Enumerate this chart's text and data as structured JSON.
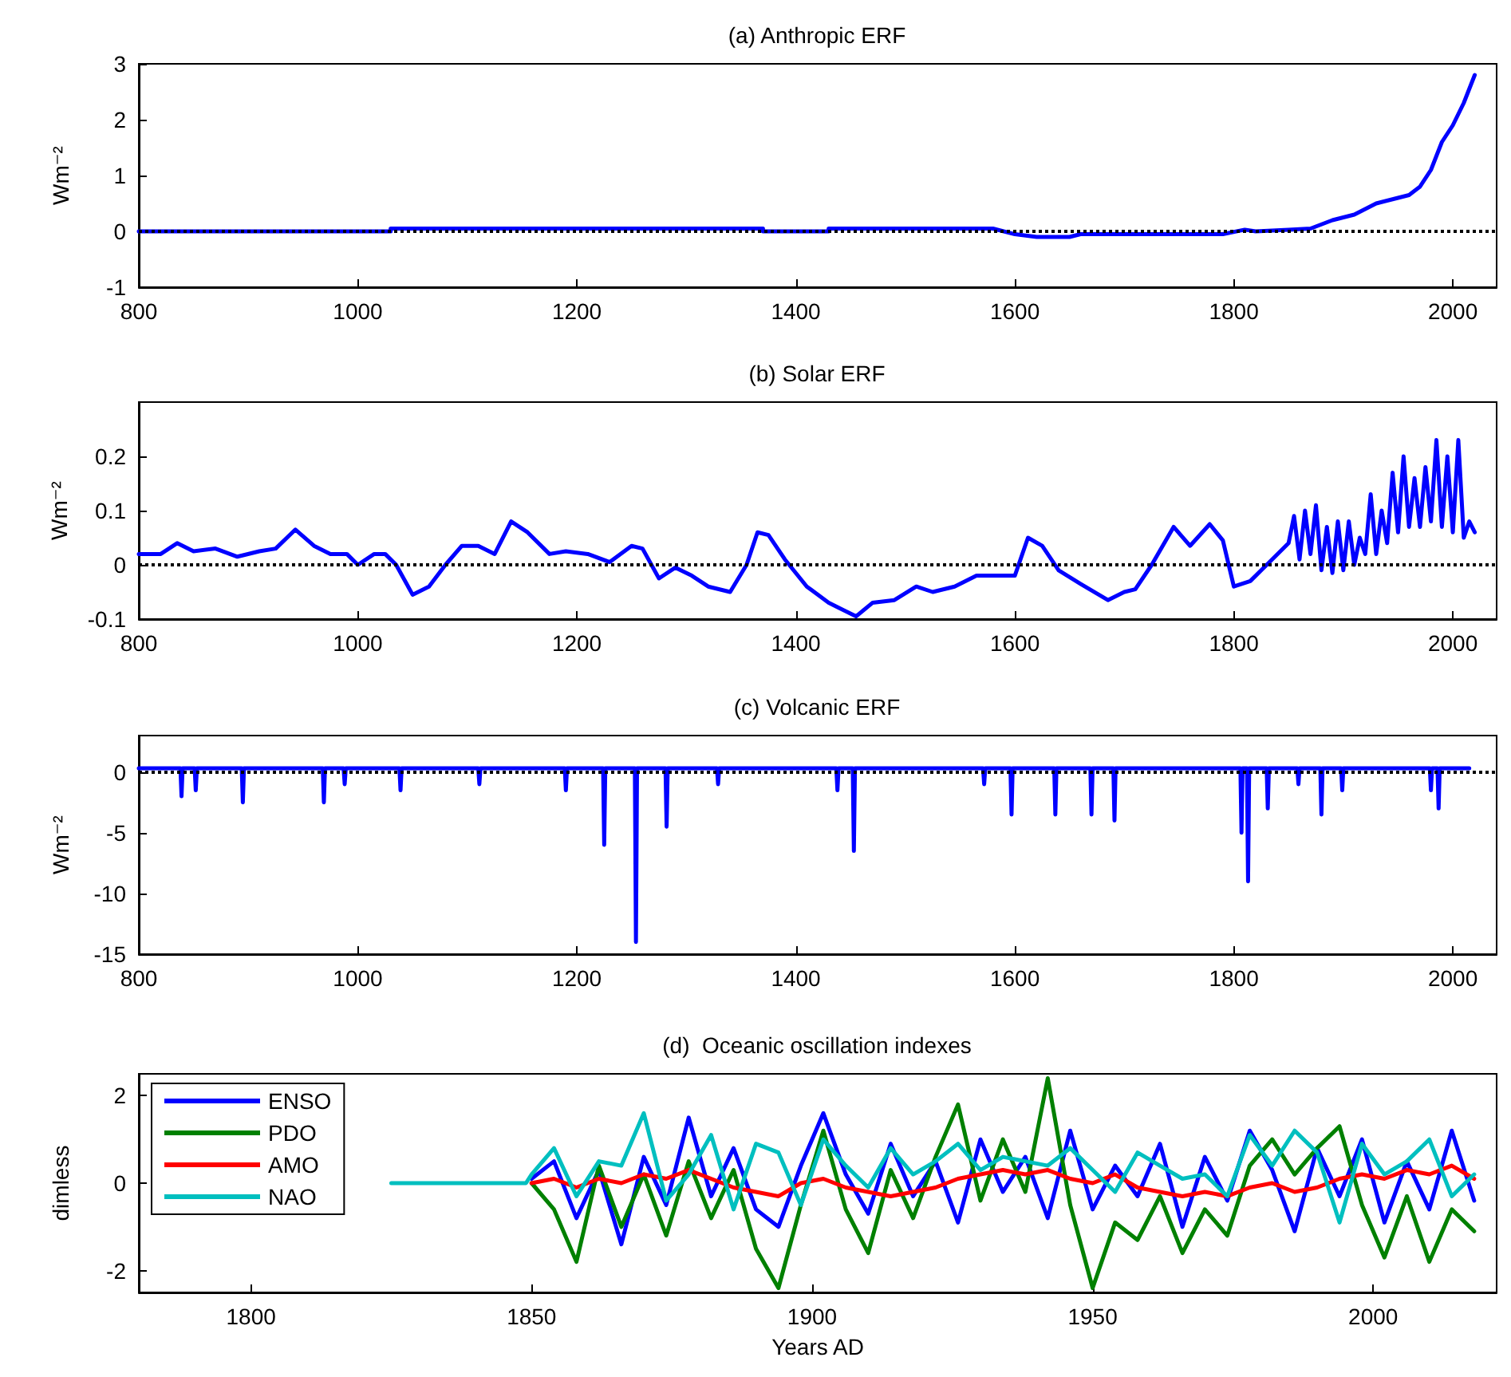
{
  "chart_data": [
    {
      "type": "line",
      "title": "(a) Anthropic ERF",
      "ylabel": "Wm⁻²",
      "color": "#0000ff",
      "marker": "none",
      "grid": false,
      "xlim": [
        800,
        2040
      ],
      "xticks": [
        800,
        1000,
        1200,
        1400,
        1600,
        1800,
        2000
      ],
      "ylim": [
        -1,
        3
      ],
      "yticks": [
        -1,
        0,
        1,
        2,
        3
      ],
      "x": [
        800,
        1030,
        1030,
        1370,
        1370,
        1430,
        1430,
        1580,
        1600,
        1620,
        1650,
        1660,
        1790,
        1810,
        1820,
        1850,
        1870,
        1890,
        1910,
        1930,
        1950,
        1960,
        1970,
        1980,
        1990,
        2000,
        2010,
        2020
      ],
      "values": [
        0,
        0,
        0.05,
        0.05,
        0,
        0,
        0.05,
        0.05,
        -0.05,
        -0.1,
        -0.1,
        -0.05,
        -0.05,
        0.03,
        0,
        0.03,
        0.05,
        0.2,
        0.3,
        0.5,
        0.6,
        0.65,
        0.8,
        1.1,
        1.6,
        1.9,
        2.3,
        2.8
      ],
      "ref_lines": [
        {
          "axis": "y",
          "value": 0,
          "color": "#000000",
          "line_style": "dotted"
        }
      ]
    },
    {
      "type": "line",
      "title": "(b) Solar ERF",
      "ylabel": "Wm⁻²",
      "color": "#0000ff",
      "marker": "none",
      "grid": false,
      "xlim": [
        800,
        2040
      ],
      "xticks": [
        800,
        1000,
        1200,
        1400,
        1600,
        1800,
        2000
      ],
      "ylim": [
        -0.1,
        0.3
      ],
      "yticks": [
        -0.1,
        0,
        0.1,
        0.2
      ],
      "x": [
        800,
        820,
        835,
        850,
        870,
        890,
        910,
        925,
        943,
        960,
        975,
        990,
        1000,
        1015,
        1025,
        1035,
        1050,
        1065,
        1080,
        1095,
        1110,
        1125,
        1140,
        1155,
        1175,
        1190,
        1210,
        1230,
        1250,
        1260,
        1275,
        1290,
        1305,
        1320,
        1340,
        1355,
        1365,
        1375,
        1390,
        1410,
        1430,
        1455,
        1470,
        1490,
        1510,
        1525,
        1545,
        1565,
        1585,
        1600,
        1612,
        1625,
        1640,
        1660,
        1685,
        1700,
        1710,
        1725,
        1745,
        1760,
        1778,
        1790,
        1800,
        1815,
        1830,
        1850,
        1855,
        1860,
        1865,
        1870,
        1875,
        1880,
        1885,
        1890,
        1895,
        1900,
        1905,
        1910,
        1915,
        1920,
        1925,
        1930,
        1935,
        1940,
        1945,
        1950,
        1955,
        1960,
        1965,
        1970,
        1975,
        1980,
        1985,
        1990,
        1995,
        2000,
        2005,
        2010,
        2015,
        2020
      ],
      "values": [
        0.02,
        0.02,
        0.04,
        0.025,
        0.03,
        0.015,
        0.025,
        0.03,
        0.065,
        0.035,
        0.02,
        0.02,
        0,
        0.02,
        0.02,
        0,
        -0.055,
        -0.04,
        0,
        0.035,
        0.035,
        0.02,
        0.08,
        0.06,
        0.02,
        0.025,
        0.02,
        0.005,
        0.035,
        0.03,
        -0.025,
        -0.005,
        -0.02,
        -0.04,
        -0.05,
        0,
        0.06,
        0.055,
        0.01,
        -0.04,
        -0.07,
        -0.095,
        -0.07,
        -0.065,
        -0.04,
        -0.05,
        -0.04,
        -0.02,
        -0.02,
        -0.02,
        0.05,
        0.035,
        -0.01,
        -0.035,
        -0.065,
        -0.05,
        -0.045,
        0,
        0.07,
        0.035,
        0.075,
        0.045,
        -0.04,
        -0.03,
        0,
        0.04,
        0.09,
        0.01,
        0.1,
        0.02,
        0.11,
        -0.01,
        0.07,
        -0.015,
        0.08,
        -0.01,
        0.08,
        0,
        0.05,
        0.02,
        0.13,
        0.02,
        0.1,
        0.04,
        0.17,
        0.06,
        0.2,
        0.07,
        0.16,
        0.07,
        0.18,
        0.08,
        0.23,
        0.07,
        0.2,
        0.06,
        0.23,
        0.05,
        0.08,
        0.06
      ],
      "ref_lines": [
        {
          "axis": "y",
          "value": 0,
          "color": "#000000",
          "line_style": "dotted"
        }
      ]
    },
    {
      "type": "line",
      "title": "(c) Volcanic ERF",
      "ylabel": "Wm⁻²",
      "color": "#0000ff",
      "marker": "none",
      "grid": false,
      "xlim": [
        800,
        2040
      ],
      "xticks": [
        800,
        1000,
        1200,
        1400,
        1600,
        1800,
        2000
      ],
      "ylim": [
        -15,
        3
      ],
      "yticks": [
        -15,
        -10,
        -5,
        0
      ],
      "x": [
        800,
        838,
        839,
        840,
        851,
        852,
        853,
        894,
        895,
        896,
        968,
        969,
        970,
        987,
        988,
        989,
        1038,
        1039,
        1040,
        1110,
        1111,
        1112,
        1189,
        1190,
        1191,
        1224,
        1225,
        1226,
        1253,
        1254,
        1255,
        1281,
        1282,
        1283,
        1328,
        1329,
        1330,
        1437,
        1438,
        1439,
        1452,
        1453,
        1454,
        1571,
        1572,
        1573,
        1596,
        1597,
        1598,
        1636,
        1637,
        1638,
        1669,
        1670,
        1671,
        1690,
        1691,
        1692,
        1806,
        1807,
        1808,
        1812,
        1813,
        1814,
        1830,
        1831,
        1832,
        1858,
        1859,
        1860,
        1879,
        1880,
        1881,
        1898,
        1899,
        1900,
        1979,
        1980,
        1981,
        1986,
        1987,
        1988,
        2015
      ],
      "values": [
        0.3,
        0.3,
        -2,
        0.3,
        0.3,
        -1.5,
        0.3,
        0.3,
        -2.5,
        0.3,
        0.3,
        -2.5,
        0.3,
        0.3,
        -1,
        0.3,
        0.3,
        -1.5,
        0.3,
        0.3,
        -1,
        0.3,
        0.3,
        -1.5,
        0.3,
        0.3,
        -6,
        0.3,
        0.3,
        -14,
        0.3,
        0.3,
        -4.5,
        0.3,
        0.3,
        -1,
        0.3,
        0.3,
        -1.5,
        0.3,
        0.3,
        -6.5,
        0.3,
        0.3,
        -1,
        0.3,
        0.3,
        -3.5,
        0.3,
        0.3,
        -3.5,
        0.3,
        0.3,
        -3.5,
        0.3,
        0.3,
        -4,
        0.3,
        0.3,
        -5,
        0.3,
        0.3,
        -9,
        0.3,
        0.3,
        -3,
        0.3,
        0.3,
        -1,
        0.3,
        0.3,
        -3.5,
        0.3,
        0.3,
        -1.5,
        0.3,
        0.3,
        -1.5,
        0.3,
        0.3,
        -3,
        0.3,
        0.3
      ],
      "ref_lines": [
        {
          "axis": "y",
          "value": 0,
          "color": "#000000",
          "line_style": "dotted"
        }
      ]
    },
    {
      "type": "line",
      "title": "(d)  Oceanic oscillation indexes",
      "xlabel": "Years AD",
      "ylabel": "dimless",
      "marker": "none",
      "grid": false,
      "legend": "top left",
      "xlim": [
        1780,
        2022
      ],
      "xticks": [
        1800,
        1850,
        1900,
        1950,
        2000
      ],
      "ylim": [
        -2.5,
        2.5
      ],
      "yticks": [
        -2,
        0,
        2
      ],
      "x": [
        1850,
        1854,
        1858,
        1862,
        1866,
        1870,
        1874,
        1878,
        1882,
        1886,
        1890,
        1894,
        1898,
        1902,
        1906,
        1910,
        1914,
        1918,
        1922,
        1926,
        1930,
        1934,
        1938,
        1942,
        1946,
        1950,
        1954,
        1958,
        1962,
        1966,
        1970,
        1974,
        1978,
        1982,
        1986,
        1990,
        1994,
        1998,
        2002,
        2006,
        2010,
        2014,
        2018
      ],
      "series": [
        {
          "name": "ENSO",
          "color": "#0000ff",
          "values": [
            0.1,
            0.5,
            -0.8,
            0.3,
            -1.4,
            0.6,
            -0.5,
            1.5,
            -0.3,
            0.8,
            -0.6,
            -1.0,
            0.4,
            1.6,
            0.2,
            -0.7,
            0.9,
            -0.3,
            0.5,
            -0.9,
            1.0,
            -0.2,
            0.6,
            -0.8,
            1.2,
            -0.6,
            0.4,
            -0.3,
            0.9,
            -1.0,
            0.6,
            -0.4,
            1.2,
            0.3,
            -1.1,
            0.8,
            -0.3,
            1.0,
            -0.9,
            0.5,
            -0.6,
            1.2,
            -0.4
          ]
        },
        {
          "name": "PDO",
          "color": "#008000",
          "values": [
            0,
            -0.6,
            -1.8,
            0.4,
            -1.0,
            0.2,
            -1.2,
            0.5,
            -0.8,
            0.3,
            -1.5,
            -2.4,
            -0.5,
            1.2,
            -0.6,
            -1.6,
            0.3,
            -0.8,
            0.6,
            1.8,
            -0.4,
            1.0,
            -0.2,
            2.4,
            -0.5,
            -2.4,
            -0.9,
            -1.3,
            -0.3,
            -1.6,
            -0.6,
            -1.2,
            0.4,
            1.0,
            0.2,
            0.8,
            1.3,
            -0.5,
            -1.7,
            -0.3,
            -1.8,
            -0.6,
            -1.1
          ]
        },
        {
          "name": "AMO",
          "color": "#ff0000",
          "values": [
            0,
            0.1,
            -0.1,
            0.1,
            0,
            0.2,
            0.1,
            0.3,
            0.1,
            -0.1,
            -0.2,
            -0.3,
            0,
            0.1,
            -0.1,
            -0.2,
            -0.3,
            -0.2,
            -0.1,
            0.1,
            0.2,
            0.3,
            0.2,
            0.3,
            0.1,
            0,
            0.2,
            -0.1,
            -0.2,
            -0.3,
            -0.2,
            -0.3,
            -0.1,
            0,
            -0.2,
            -0.1,
            0.1,
            0.2,
            0.1,
            0.3,
            0.2,
            0.4,
            0.1
          ]
        },
        {
          "name": "NAO",
          "color": "#00bfbf",
          "x": [
            1825,
            1849,
            1850,
            1854,
            1858,
            1862,
            1866,
            1870,
            1874,
            1878,
            1882,
            1886,
            1890,
            1894,
            1898,
            1902,
            1906,
            1910,
            1914,
            1918,
            1922,
            1926,
            1930,
            1934,
            1938,
            1942,
            1946,
            1950,
            1954,
            1958,
            1962,
            1966,
            1970,
            1974,
            1978,
            1982,
            1986,
            1990,
            1994,
            1998,
            2002,
            2006,
            2010,
            2014,
            2018
          ],
          "values": [
            0,
            0,
            0.2,
            0.8,
            -0.3,
            0.5,
            0.4,
            1.6,
            -0.4,
            0.2,
            1.1,
            -0.6,
            0.9,
            0.7,
            -0.5,
            1.0,
            0.4,
            -0.1,
            0.8,
            0.2,
            0.5,
            0.9,
            0.3,
            0.6,
            0.5,
            0.4,
            0.8,
            0.3,
            -0.2,
            0.7,
            0.4,
            0.1,
            0.2,
            -0.3,
            1.1,
            0.4,
            1.2,
            0.7,
            -0.9,
            0.9,
            0.2,
            0.5,
            1.0,
            -0.3,
            0.2
          ]
        }
      ]
    }
  ]
}
